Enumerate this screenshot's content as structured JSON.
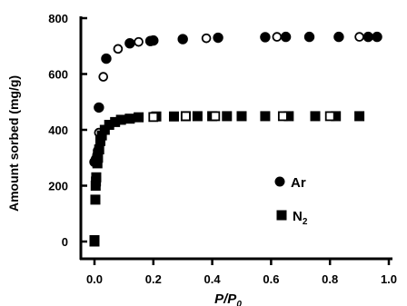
{
  "chart_data": {
    "type": "scatter",
    "title": "",
    "xlabel": "P/P0",
    "xlabel_main": "P/P",
    "xlabel_sub": "0",
    "ylabel": "Amount sorbed (mg/g)",
    "xlim": [
      0.0,
      1.0
    ],
    "ylim": [
      0,
      800
    ],
    "x_ticks": [
      0.0,
      0.2,
      0.4,
      0.6,
      0.8,
      1.0
    ],
    "x_tick_labels": [
      "0.0",
      "0.2",
      "0.4",
      "0.6",
      "0.8",
      "1.0"
    ],
    "y_ticks": [
      0,
      200,
      400,
      600,
      800
    ],
    "y_tick_labels": [
      "0",
      "200",
      "400",
      "600",
      "800"
    ],
    "grid": false,
    "legend_position": "center-right",
    "series": [
      {
        "name": "Ar",
        "name_main": "Ar",
        "name_sub": "",
        "marker": "circle",
        "color": "#000000",
        "adsorption": {
          "x": [
            0.0,
            0.005,
            0.01,
            0.012,
            0.015,
            0.04,
            0.12,
            0.19,
            0.2,
            0.3,
            0.42,
            0.58,
            0.65,
            0.73,
            0.83,
            0.93,
            0.96
          ],
          "y": [
            285,
            295,
            310,
            325,
            480,
            655,
            710,
            718,
            720,
            725,
            730,
            732,
            733,
            733,
            733,
            733,
            733
          ]
        },
        "desorption": {
          "x": [
            0.015,
            0.03,
            0.08,
            0.15,
            0.38,
            0.62,
            0.9
          ],
          "y": [
            390,
            590,
            690,
            715,
            728,
            733,
            733
          ]
        }
      },
      {
        "name": "N2",
        "name_main": "N",
        "name_sub": "2",
        "marker": "square",
        "color": "#000000",
        "adsorption": {
          "x": [
            0.0,
            0.0,
            0.003,
            0.004,
            0.005,
            0.006,
            0.01,
            0.012,
            0.016,
            0.02,
            0.025,
            0.035,
            0.05,
            0.07,
            0.09,
            0.12,
            0.15,
            0.21,
            0.27,
            0.31,
            0.35,
            0.4,
            0.45,
            0.5,
            0.58,
            0.66,
            0.75,
            0.82,
            0.9
          ],
          "y": [
            0,
            5,
            150,
            200,
            215,
            230,
            280,
            300,
            330,
            360,
            380,
            400,
            418,
            428,
            436,
            440,
            445,
            448,
            448,
            449,
            449,
            449,
            449,
            449,
            449,
            449,
            449,
            449,
            449
          ]
        },
        "desorption": {
          "x": [
            0.2,
            0.31,
            0.41,
            0.64,
            0.8
          ],
          "y": [
            446,
            449,
            449,
            449,
            449
          ]
        }
      }
    ]
  }
}
